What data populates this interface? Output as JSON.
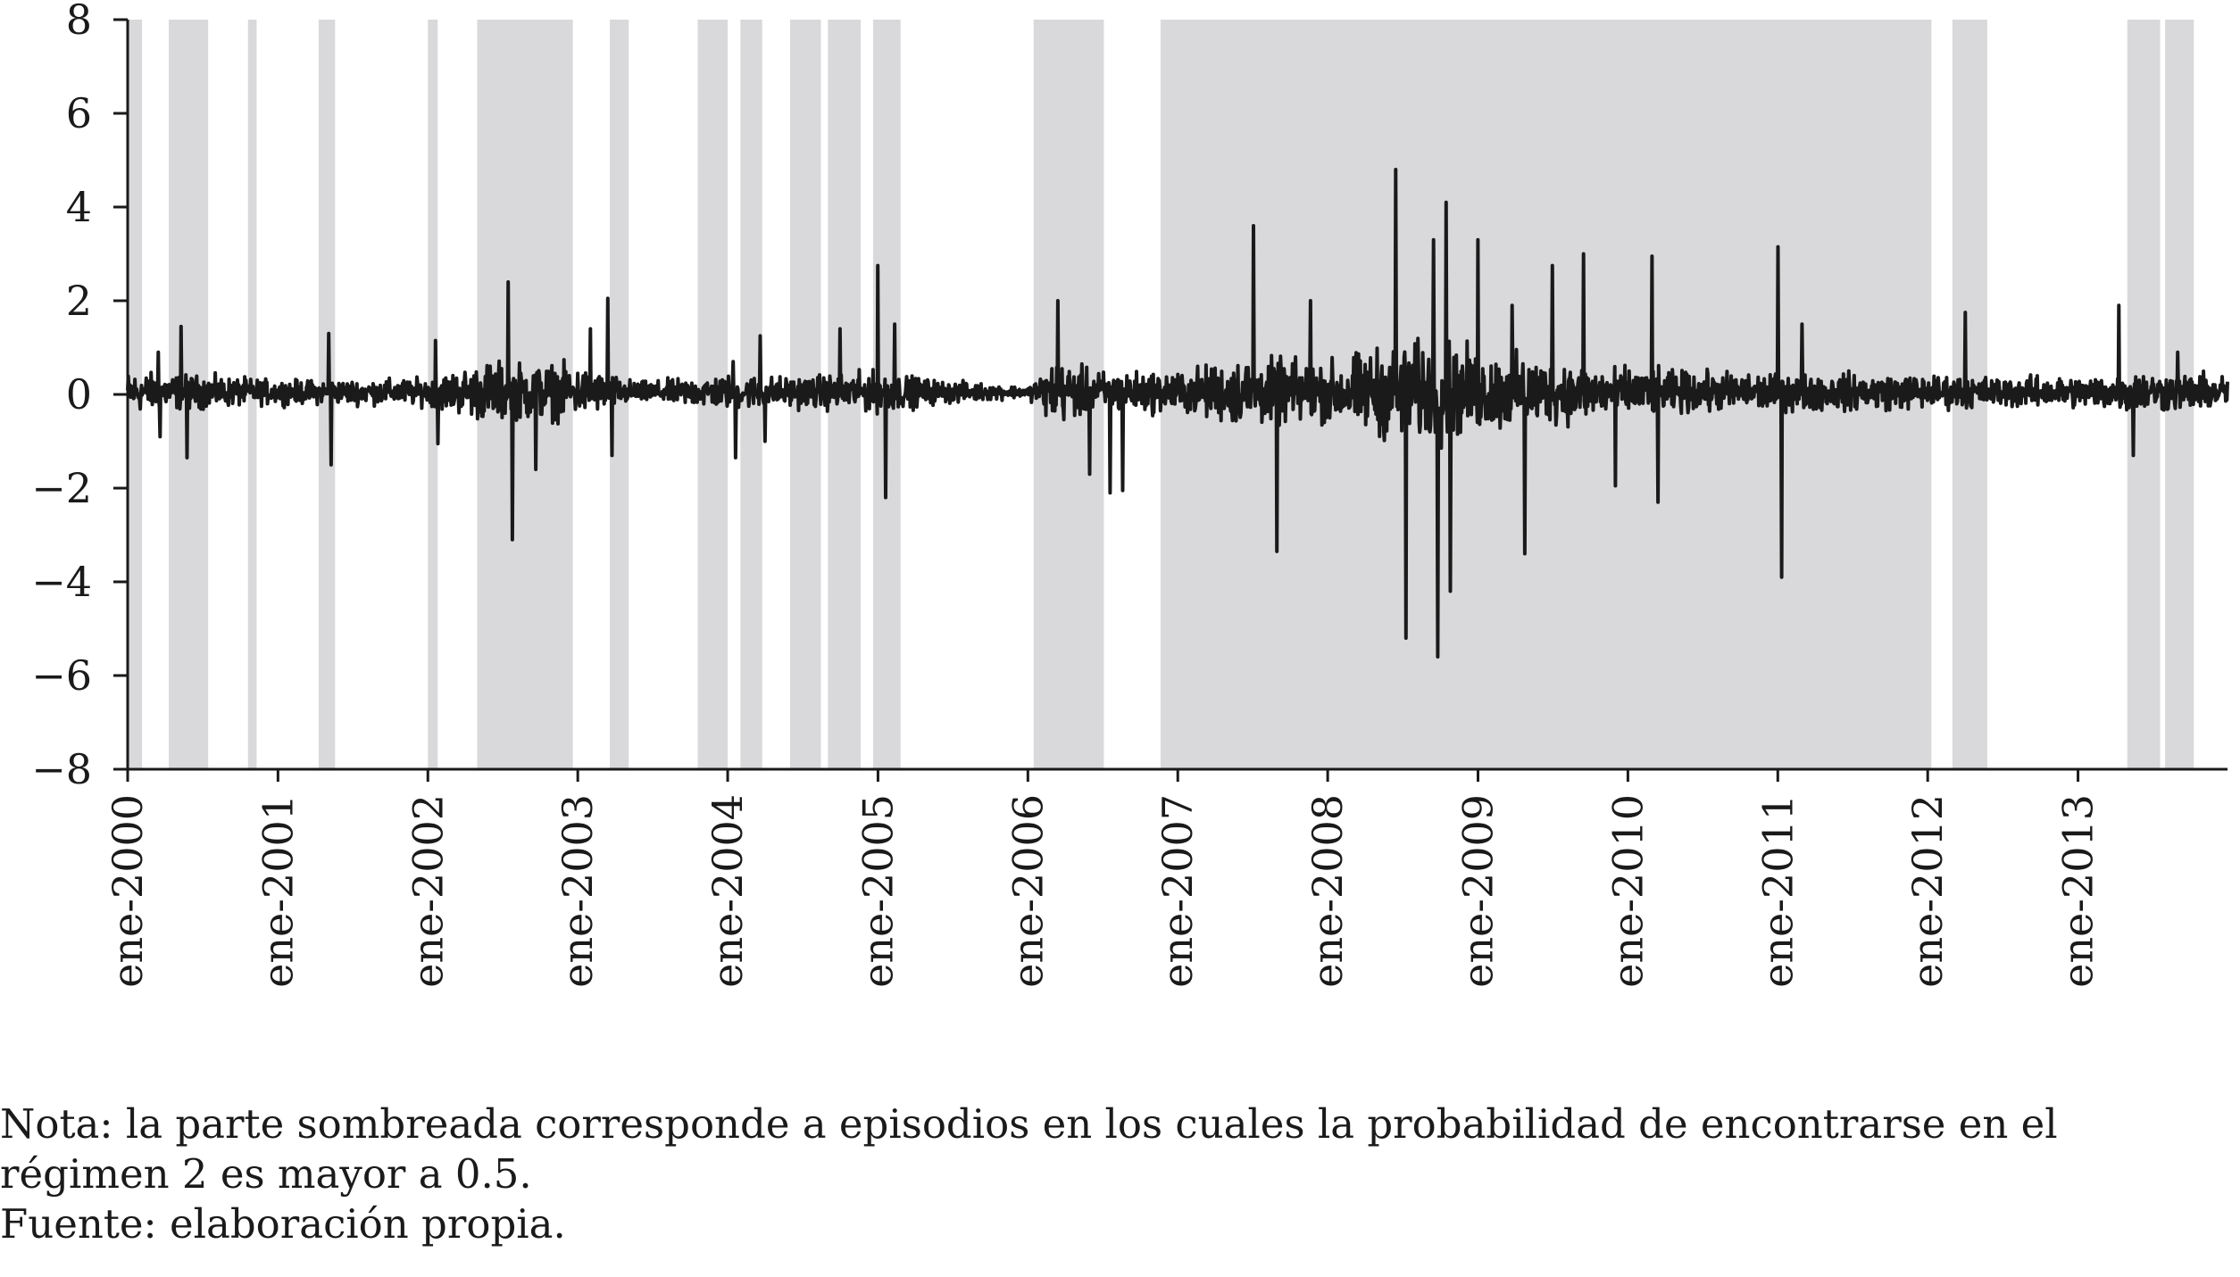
{
  "chart_data": {
    "type": "line",
    "title": "",
    "xlabel": "",
    "ylabel": "",
    "x_range": [
      "2000-01-01",
      "2013-12-31"
    ],
    "ylim": [
      -8,
      8
    ],
    "yticks": [
      8,
      6,
      4,
      2,
      0,
      -2,
      -4,
      -6,
      -8
    ],
    "ytick_labels": [
      "8",
      "6",
      "4",
      "2",
      "0",
      "−2",
      "−4",
      "−6",
      "−8"
    ],
    "xticks": [
      "2000-01-01",
      "2001-01-01",
      "2002-01-01",
      "2003-01-01",
      "2004-01-01",
      "2005-01-01",
      "2006-01-01",
      "2007-01-01",
      "2008-01-01",
      "2009-01-01",
      "2010-01-01",
      "2011-01-01",
      "2012-01-01",
      "2013-01-01"
    ],
    "xtick_labels": [
      "ene-2000",
      "ene-2001",
      "ene-2002",
      "ene-2003",
      "ene-2004",
      "ene-2005",
      "ene-2006",
      "ene-2007",
      "ene-2008",
      "ene-2009",
      "ene-2010",
      "ene-2011",
      "ene-2012",
      "ene-2013"
    ],
    "grid": false,
    "line_color": "#1a1a1a",
    "shade_color": "#d9d9db",
    "shaded_regions": [
      [
        "2000-01-01",
        "2000-02-05"
      ],
      [
        "2000-04-10",
        "2000-07-15"
      ],
      [
        "2000-10-20",
        "2000-11-10"
      ],
      [
        "2001-04-10",
        "2001-05-20"
      ],
      [
        "2002-01-01",
        "2002-01-25"
      ],
      [
        "2002-05-01",
        "2002-12-20"
      ],
      [
        "2003-03-20",
        "2003-05-05"
      ],
      [
        "2003-10-20",
        "2004-01-01"
      ],
      [
        "2004-02-01",
        "2004-03-25"
      ],
      [
        "2004-06-01",
        "2004-08-15"
      ],
      [
        "2004-09-01",
        "2004-11-20"
      ],
      [
        "2004-12-20",
        "2005-02-25"
      ],
      [
        "2006-01-15",
        "2006-07-05"
      ],
      [
        "2006-11-20",
        "2012-01-10"
      ],
      [
        "2012-03-01",
        "2012-05-25"
      ],
      [
        "2013-05-01",
        "2013-07-20"
      ],
      [
        "2013-08-01",
        "2013-10-10"
      ]
    ],
    "series": [
      {
        "baseline_amplitude": [
          [
            "2000-01-01",
            0.6
          ],
          [
            "2000-06-01",
            0.5
          ],
          [
            "2001-01-01",
            0.35
          ],
          [
            "2001-06-01",
            0.35
          ],
          [
            "2002-01-01",
            0.4
          ],
          [
            "2002-06-01",
            0.9
          ],
          [
            "2002-12-01",
            0.8
          ],
          [
            "2003-06-01",
            0.3
          ],
          [
            "2004-01-01",
            0.5
          ],
          [
            "2004-06-01",
            0.45
          ],
          [
            "2005-01-01",
            0.6
          ],
          [
            "2005-06-01",
            0.35
          ],
          [
            "2006-01-01",
            0.15
          ],
          [
            "2006-03-01",
            0.9
          ],
          [
            "2006-07-01",
            0.6
          ],
          [
            "2007-01-01",
            0.6
          ],
          [
            "2007-06-01",
            1.0
          ],
          [
            "2008-01-01",
            0.9
          ],
          [
            "2008-06-01",
            1.4
          ],
          [
            "2008-10-01",
            1.5
          ],
          [
            "2009-01-01",
            1.2
          ],
          [
            "2009-06-01",
            1.0
          ],
          [
            "2010-01-01",
            0.7
          ],
          [
            "2010-06-01",
            0.6
          ],
          [
            "2011-01-01",
            0.55
          ],
          [
            "2011-06-01",
            0.55
          ],
          [
            "2012-01-01",
            0.5
          ],
          [
            "2012-06-01",
            0.45
          ],
          [
            "2013-01-01",
            0.45
          ],
          [
            "2013-06-01",
            0.6
          ],
          [
            "2013-12-31",
            0.5
          ]
        ],
        "spikes": [
          [
            "2000-03-15",
            0.9
          ],
          [
            "2000-03-20",
            -0.9
          ],
          [
            "2000-05-10",
            1.45
          ],
          [
            "2000-05-25",
            -1.35
          ],
          [
            "2001-05-05",
            1.3
          ],
          [
            "2001-05-10",
            -1.5
          ],
          [
            "2002-01-20",
            1.15
          ],
          [
            "2002-01-25",
            -1.05
          ],
          [
            "2002-07-15",
            2.4
          ],
          [
            "2002-07-25",
            -3.1
          ],
          [
            "2002-09-20",
            -1.6
          ],
          [
            "2003-02-01",
            1.4
          ],
          [
            "2003-03-15",
            2.05
          ],
          [
            "2003-03-25",
            -1.3
          ],
          [
            "2004-01-15",
            0.7
          ],
          [
            "2004-01-20",
            -1.35
          ],
          [
            "2004-03-20",
            1.25
          ],
          [
            "2004-04-01",
            -1.0
          ],
          [
            "2004-10-01",
            1.4
          ],
          [
            "2005-01-01",
            2.75
          ],
          [
            "2005-01-20",
            -2.2
          ],
          [
            "2005-02-10",
            1.5
          ],
          [
            "2006-03-15",
            2.0
          ],
          [
            "2006-06-01",
            -1.7
          ],
          [
            "2006-07-20",
            -2.1
          ],
          [
            "2006-08-20",
            -2.05
          ],
          [
            "2007-07-05",
            3.6
          ],
          [
            "2007-08-30",
            -3.35
          ],
          [
            "2007-11-20",
            2.0
          ],
          [
            "2008-06-15",
            4.8
          ],
          [
            "2008-07-10",
            -5.2
          ],
          [
            "2008-09-15",
            3.3
          ],
          [
            "2008-09-25",
            -5.6
          ],
          [
            "2008-10-15",
            4.1
          ],
          [
            "2008-10-25",
            -4.2
          ],
          [
            "2009-01-01",
            3.3
          ],
          [
            "2009-03-25",
            1.9
          ],
          [
            "2009-04-25",
            -3.4
          ],
          [
            "2009-07-01",
            2.75
          ],
          [
            "2009-09-15",
            3.0
          ],
          [
            "2009-12-01",
            -1.95
          ],
          [
            "2010-03-01",
            2.95
          ],
          [
            "2010-03-15",
            -2.3
          ],
          [
            "2011-01-01",
            3.15
          ],
          [
            "2011-01-10",
            -3.9
          ],
          [
            "2011-03-01",
            1.5
          ],
          [
            "2012-04-01",
            1.75
          ],
          [
            "2013-04-10",
            1.9
          ],
          [
            "2013-05-15",
            -1.3
          ],
          [
            "2013-09-01",
            0.9
          ]
        ]
      }
    ]
  },
  "note": {
    "line1": "Nota: la parte sombreada corresponde a episodios en los cuales la probabilidad de encontrarse en el",
    "line2": "régimen 2 es mayor a 0.5.",
    "line3": "Fuente: elaboración propia."
  }
}
